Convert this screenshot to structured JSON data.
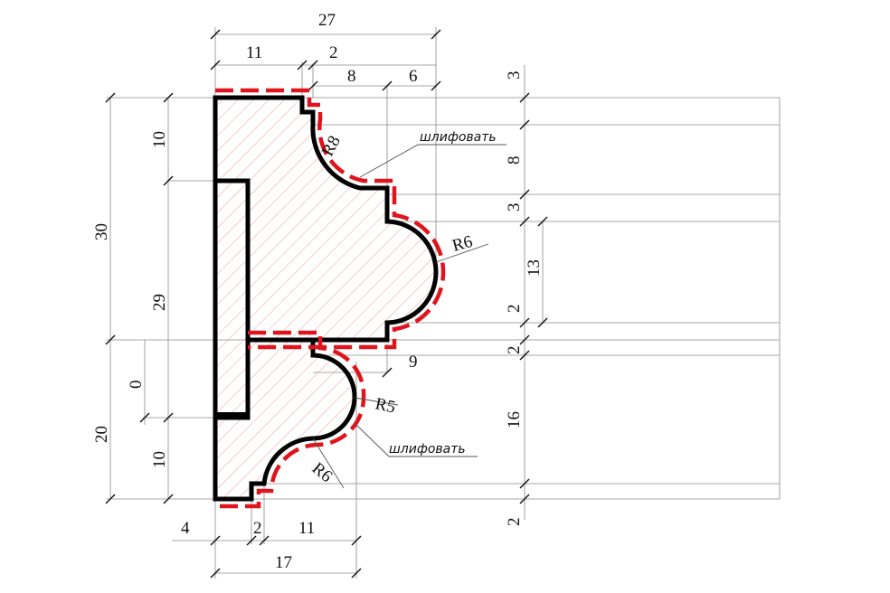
{
  "drawing": {
    "dimensions": {
      "top_total": "27",
      "top_11": "11",
      "top_2": "2",
      "top_8": "8",
      "top_6": "6",
      "right_3a": "3",
      "right_8": "8",
      "right_3b": "3",
      "right_13": "13",
      "right_2a": "2",
      "right_2b": "2",
      "right_16": "16",
      "right_2c": "2",
      "left_30": "30",
      "left_10a": "10",
      "left_29": "29",
      "left_0": "0",
      "left_20": "20",
      "left_10b": "10",
      "bottom_4": "4",
      "bottom_2": "2",
      "bottom_11": "11",
      "bottom_17": "17",
      "mid_9": "9"
    },
    "radii": {
      "r8": "R8",
      "r6_top": "R6",
      "r5": "R5",
      "r6_bottom": "R6"
    },
    "notes": {
      "grind_top": "шлифовать",
      "grind_bottom": "шлифовать"
    },
    "colors": {
      "outline": "#000000",
      "sanding_line": "#e0141c",
      "hatch": "#e08a8a"
    }
  }
}
